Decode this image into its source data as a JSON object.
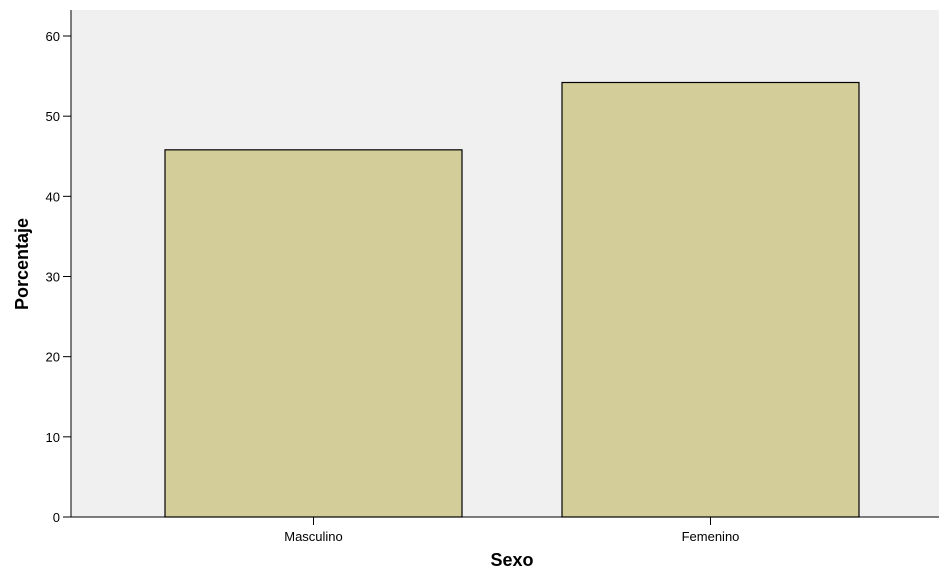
{
  "chart_data": {
    "type": "bar",
    "categories": [
      "Masculino",
      "Femenino"
    ],
    "values": [
      45.8,
      54.2
    ],
    "title": "",
    "xlabel": "Sexo",
    "ylabel": "Porcentaje",
    "ylim": [
      0,
      60
    ],
    "yticks": [
      "0",
      "10",
      "20",
      "30",
      "40",
      "50",
      "60"
    ],
    "grid": false,
    "legend": "none",
    "colors": {
      "plot_background": "#f0f0f0",
      "bar_fill": "#d3ce99",
      "bar_stroke": "#000000",
      "axis": "#000000"
    }
  }
}
